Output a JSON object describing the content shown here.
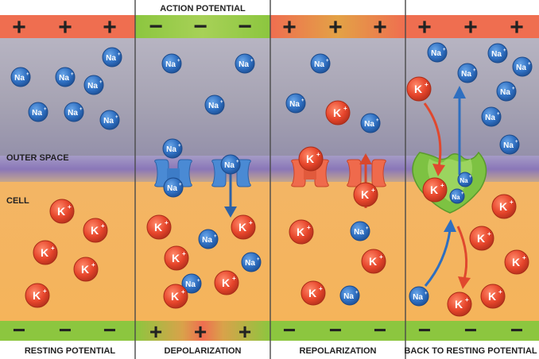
{
  "title": "ACTION POTENTIAL",
  "region_labels": {
    "outer": "OUTER SPACE",
    "cell": "CELL"
  },
  "panels": [
    {
      "caption": "RESTING POTENTIAL",
      "top_signs": "+",
      "bottom_signs": "−",
      "top_band": "red",
      "bottom_band": "green"
    },
    {
      "caption": "DEPOLARIZATION",
      "top_signs": "−",
      "bottom_signs": "+",
      "top_band": "green",
      "bottom_band": "red"
    },
    {
      "caption": "REPOLARIZATION",
      "top_signs": "+",
      "bottom_signs": "−",
      "top_band": "red",
      "bottom_band": "green"
    },
    {
      "caption": "BACK TO RESTING POTENTIAL",
      "top_signs": "+",
      "bottom_signs": "−",
      "top_band": "red",
      "bottom_band": "green"
    }
  ],
  "ions": {
    "sodium": "Na",
    "potassium": "K"
  },
  "colors": {
    "band_red": "#ef6e50",
    "band_green": "#8cc63f",
    "outer_space": "#a9a6b5",
    "membrane": "#8b7ab8",
    "cell": "#f4b25c",
    "sodium": "#2e6fc0",
    "potassium": "#e8452c",
    "channel_na": "#4a8ad4",
    "channel_k": "#ef6a4c",
    "pump": "#7dc242"
  }
}
